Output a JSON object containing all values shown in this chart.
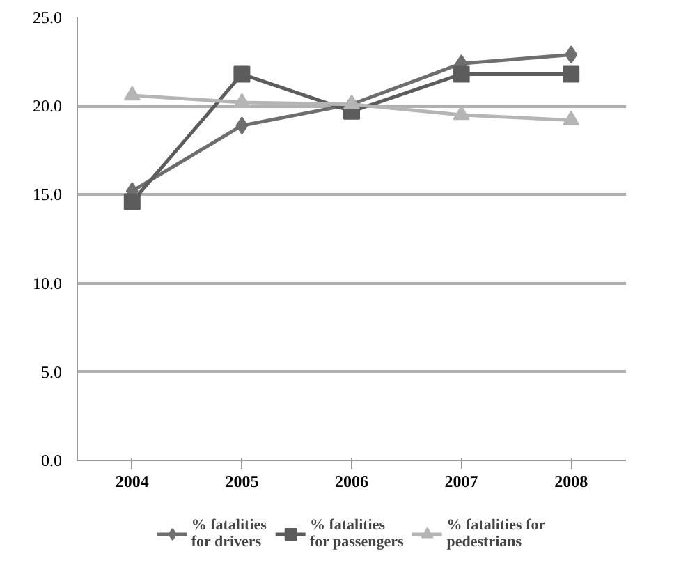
{
  "chart_data": {
    "type": "line",
    "categories": [
      "2004",
      "2005",
      "2006",
      "2007",
      "2008"
    ],
    "ylim": [
      0,
      25
    ],
    "yticks": [
      {
        "value": 0,
        "label": "0.0"
      },
      {
        "value": 5,
        "label": "5.0"
      },
      {
        "value": 10,
        "label": "10.0"
      },
      {
        "value": 15,
        "label": "15.0"
      },
      {
        "value": 20,
        "label": "20.0"
      },
      {
        "value": 25,
        "label": "25.0"
      }
    ],
    "grid": "y",
    "legend": "bottom",
    "line_style": "solid",
    "series": [
      {
        "name": "% fatalities\nfor drivers",
        "color": "#6e6e6e",
        "marker": "diamond",
        "values": [
          15.2,
          18.9,
          20.1,
          22.4,
          22.9
        ]
      },
      {
        "name": "% fatalities\nfor passengers",
        "color": "#5c5c5c",
        "marker": "square",
        "values": [
          14.6,
          21.8,
          19.7,
          21.8,
          21.8
        ]
      },
      {
        "name": "% fatalities for\npedestrians",
        "color": "#b5b5b5",
        "marker": "triangle",
        "values": [
          20.6,
          20.2,
          20.1,
          19.5,
          19.2
        ]
      }
    ]
  }
}
